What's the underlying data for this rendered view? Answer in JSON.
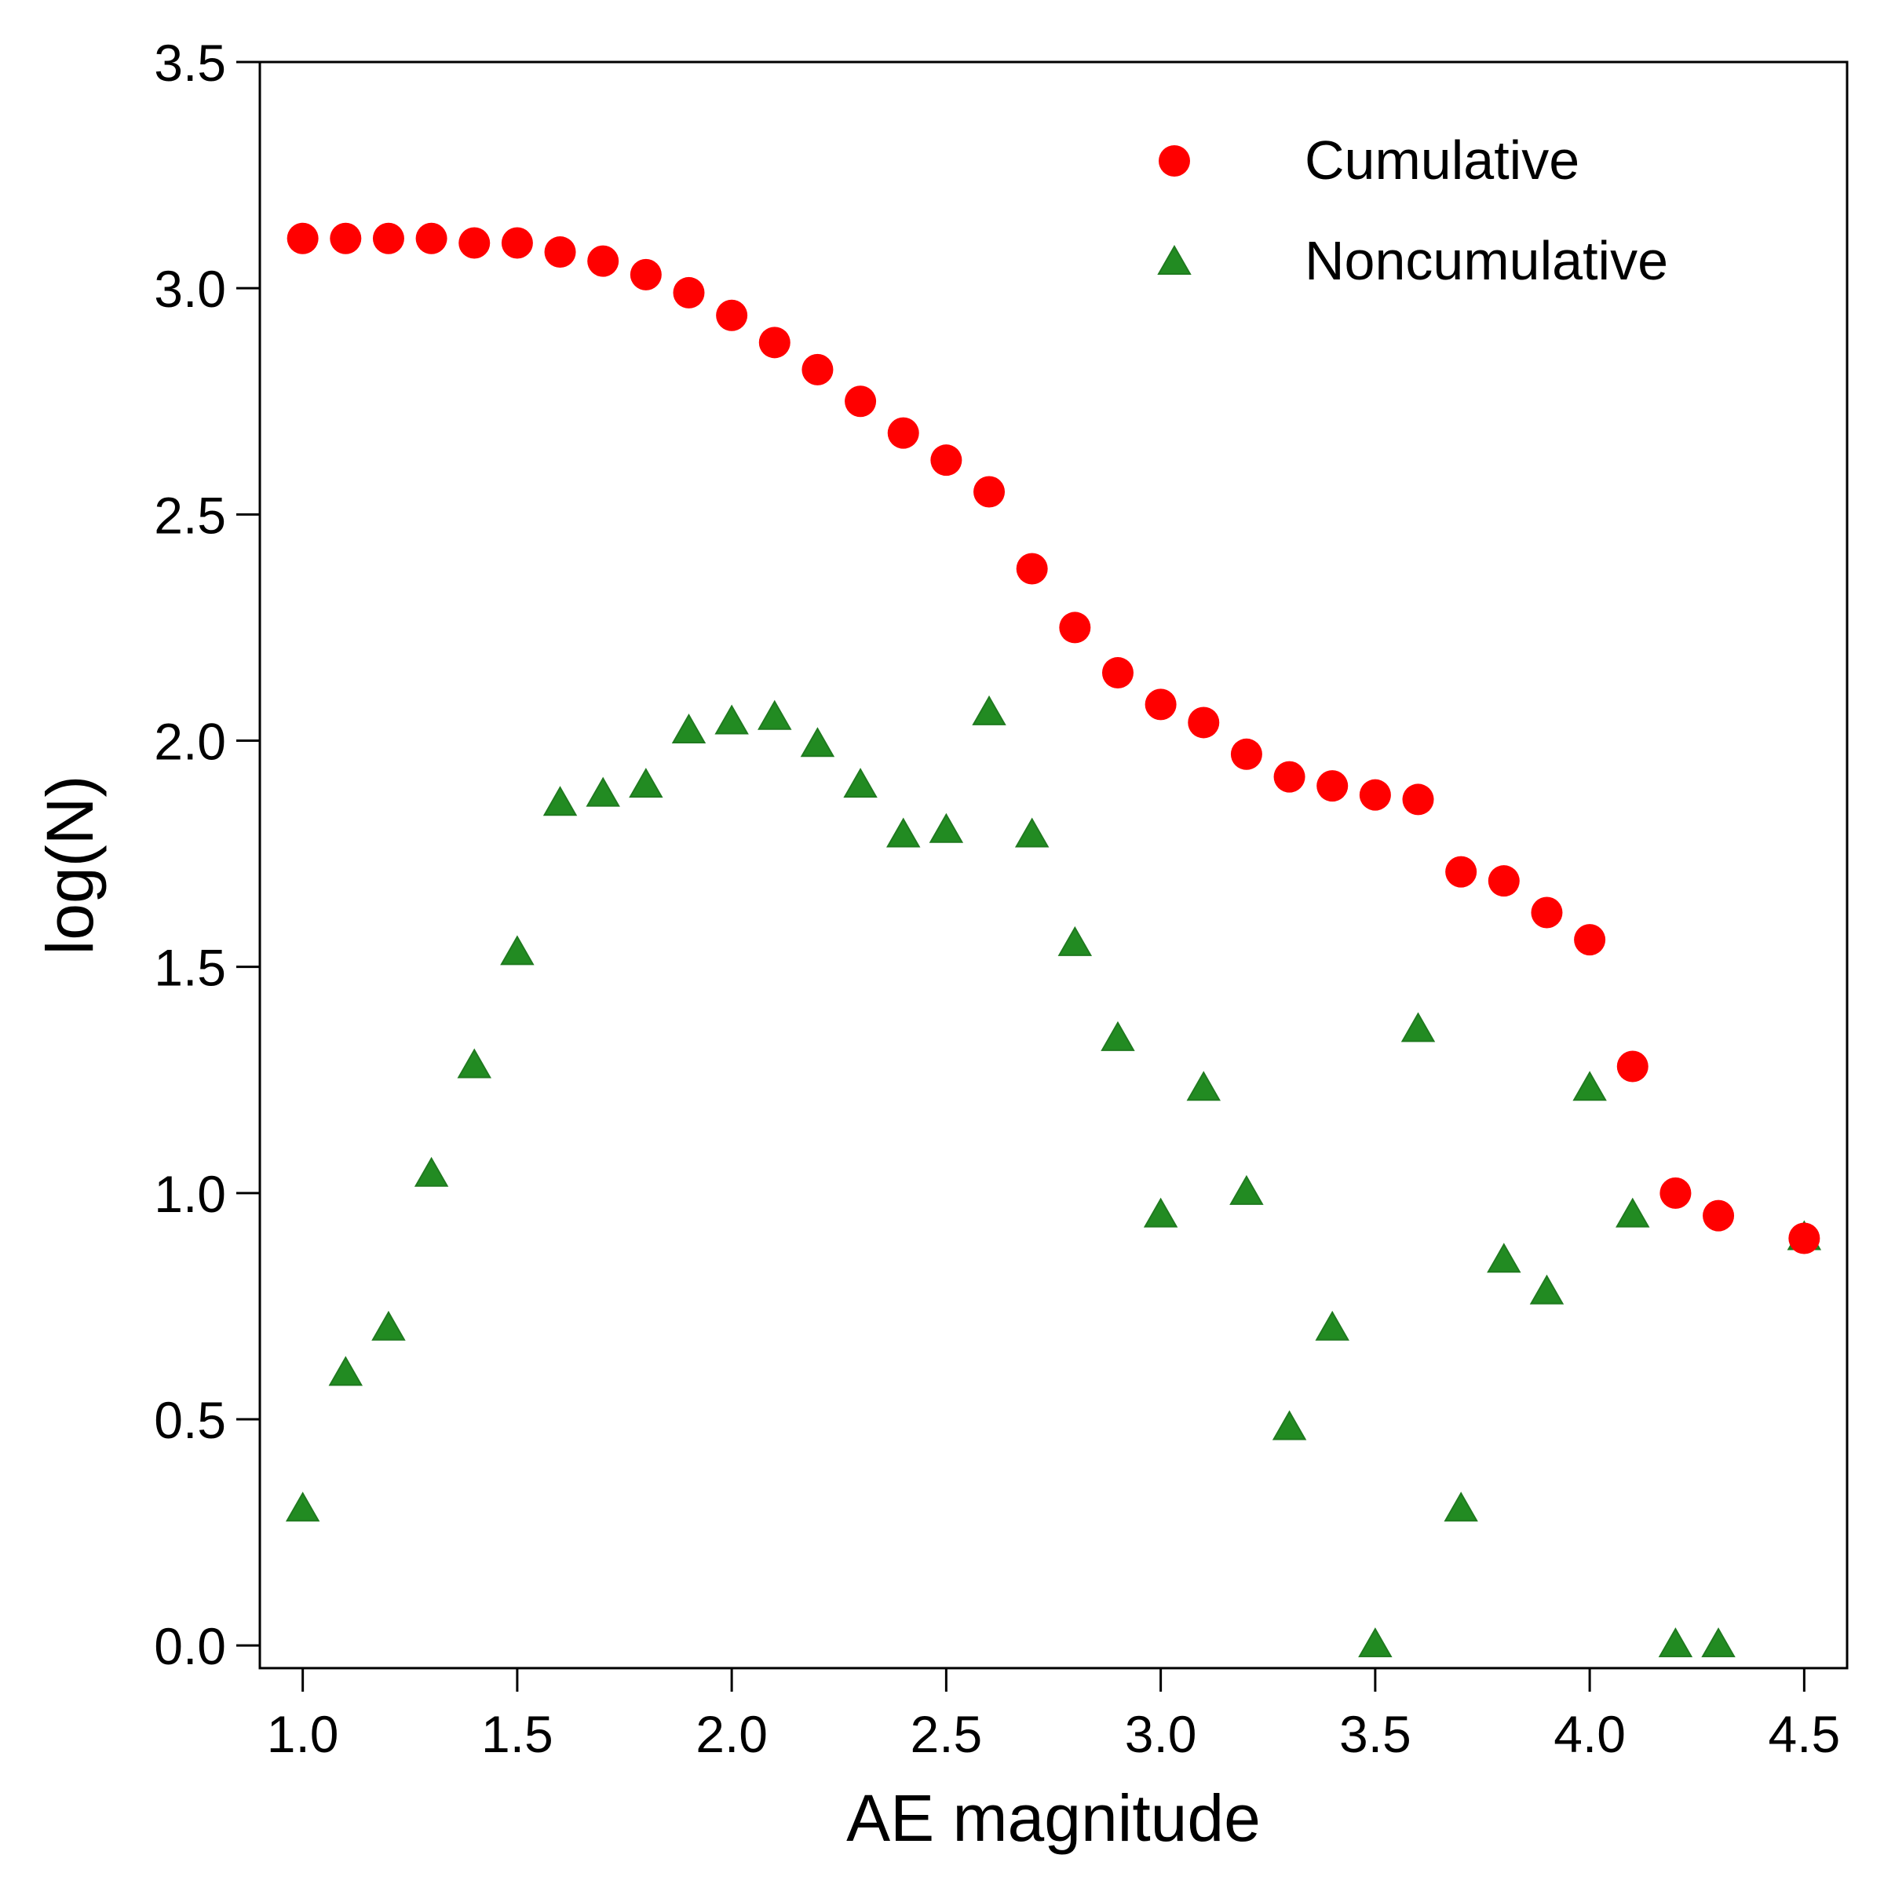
{
  "chart_data": {
    "type": "scatter",
    "xlabel": "AE magnitude",
    "ylabel": "log(N)",
    "xlim": [
      0.9,
      4.6
    ],
    "ylim": [
      -0.05,
      3.5
    ],
    "xticks": [
      "1.0",
      "1.5",
      "2.0",
      "2.5",
      "3.0",
      "3.5",
      "4.0",
      "4.5"
    ],
    "yticks": [
      "0.0",
      "0.5",
      "1.0",
      "1.5",
      "2.0",
      "2.5",
      "3.0",
      "3.5"
    ],
    "grid": false,
    "legend_position": "top-right",
    "series": [
      {
        "name": "Cumulative",
        "marker": "circle",
        "color": "#ff0000",
        "points": [
          [
            1.0,
            3.11
          ],
          [
            1.1,
            3.11
          ],
          [
            1.2,
            3.11
          ],
          [
            1.3,
            3.11
          ],
          [
            1.4,
            3.1
          ],
          [
            1.5,
            3.1
          ],
          [
            1.6,
            3.08
          ],
          [
            1.7,
            3.06
          ],
          [
            1.8,
            3.03
          ],
          [
            1.9,
            2.99
          ],
          [
            2.0,
            2.94
          ],
          [
            2.1,
            2.88
          ],
          [
            2.2,
            2.82
          ],
          [
            2.3,
            2.75
          ],
          [
            2.4,
            2.68
          ],
          [
            2.5,
            2.62
          ],
          [
            2.6,
            2.55
          ],
          [
            2.7,
            2.38
          ],
          [
            2.8,
            2.25
          ],
          [
            2.9,
            2.15
          ],
          [
            3.0,
            2.08
          ],
          [
            3.1,
            2.04
          ],
          [
            3.2,
            1.97
          ],
          [
            3.3,
            1.92
          ],
          [
            3.4,
            1.9
          ],
          [
            3.5,
            1.88
          ],
          [
            3.6,
            1.87
          ],
          [
            3.7,
            1.71
          ],
          [
            3.8,
            1.69
          ],
          [
            3.9,
            1.62
          ],
          [
            4.0,
            1.56
          ],
          [
            4.1,
            1.28
          ],
          [
            4.2,
            1.0
          ],
          [
            4.3,
            0.95
          ],
          [
            4.5,
            0.9
          ]
        ]
      },
      {
        "name": "Noncumulative",
        "marker": "triangle",
        "color": "#228b22",
        "points": [
          [
            1.0,
            0.3
          ],
          [
            1.1,
            0.6
          ],
          [
            1.2,
            0.7
          ],
          [
            1.3,
            1.04
          ],
          [
            1.4,
            1.28
          ],
          [
            1.5,
            1.53
          ],
          [
            1.6,
            1.86
          ],
          [
            1.7,
            1.88
          ],
          [
            1.8,
            1.9
          ],
          [
            1.9,
            2.02
          ],
          [
            2.0,
            2.04
          ],
          [
            2.1,
            2.05
          ],
          [
            2.2,
            1.99
          ],
          [
            2.3,
            1.9
          ],
          [
            2.4,
            1.79
          ],
          [
            2.5,
            1.8
          ],
          [
            2.6,
            2.06
          ],
          [
            2.7,
            1.79
          ],
          [
            2.8,
            1.55
          ],
          [
            2.9,
            1.34
          ],
          [
            3.0,
            0.95
          ],
          [
            3.1,
            1.23
          ],
          [
            3.2,
            1.0
          ],
          [
            3.3,
            0.48
          ],
          [
            3.4,
            0.7
          ],
          [
            3.5,
            0.0
          ],
          [
            3.6,
            1.36
          ],
          [
            3.7,
            0.3
          ],
          [
            3.8,
            0.85
          ],
          [
            3.9,
            0.78
          ],
          [
            4.0,
            1.23
          ],
          [
            4.1,
            0.95
          ],
          [
            4.2,
            0.0
          ],
          [
            4.3,
            0.0
          ],
          [
            4.5,
            0.9
          ]
        ]
      }
    ]
  }
}
